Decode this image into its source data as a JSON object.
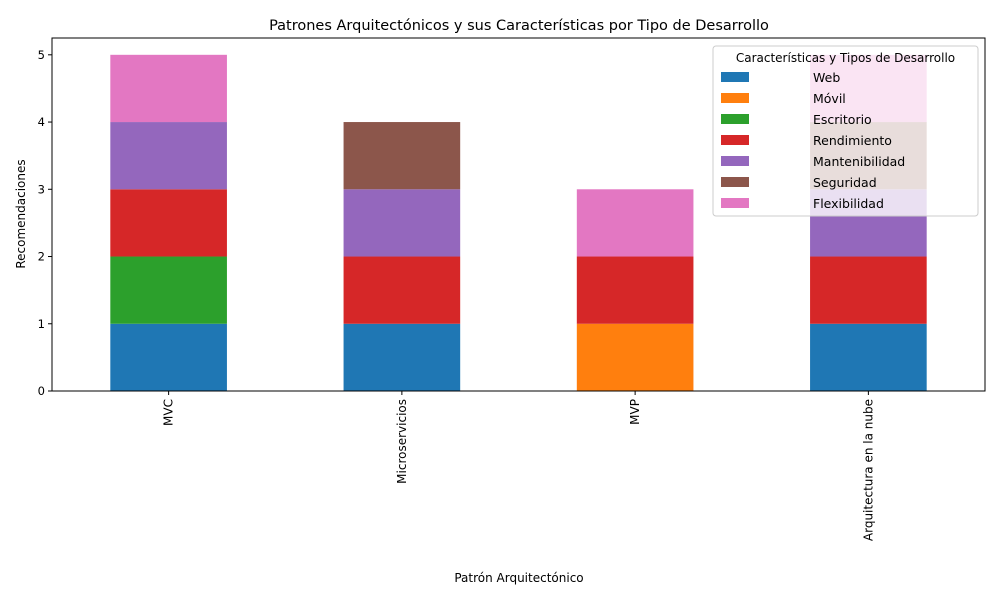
{
  "chart_data": {
    "type": "bar",
    "stacked": true,
    "title": "Patrones Arquitectónicos y sus Características por Tipo de Desarrollo",
    "xlabel": "Patrón Arquitectónico",
    "ylabel": "Recomendaciones",
    "ylim": [
      0,
      5.25
    ],
    "yticks": [
      0,
      1,
      2,
      3,
      4,
      5
    ],
    "categories": [
      "MVC",
      "Microservicios",
      "MVP",
      "Arquitectura en la nube"
    ],
    "legend_title": "Características y Tipos de Desarrollo",
    "legend_position": "top-right",
    "grid": false,
    "series": [
      {
        "name": "Web",
        "color": "#1f77b4",
        "values": [
          1,
          1,
          0,
          1
        ]
      },
      {
        "name": "Móvil",
        "color": "#ff7f0e",
        "values": [
          0,
          0,
          1,
          0
        ]
      },
      {
        "name": "Escritorio",
        "color": "#2ca02c",
        "values": [
          1,
          0,
          0,
          0
        ]
      },
      {
        "name": "Rendimiento",
        "color": "#d62728",
        "values": [
          1,
          1,
          1,
          1
        ]
      },
      {
        "name": "Mantenibilidad",
        "color": "#9467bd",
        "values": [
          1,
          1,
          0,
          1
        ]
      },
      {
        "name": "Seguridad",
        "color": "#8c564b",
        "values": [
          0,
          1,
          0,
          1
        ]
      },
      {
        "name": "Flexibilidad",
        "color": "#e377c2",
        "values": [
          1,
          0,
          1,
          1
        ]
      }
    ]
  }
}
